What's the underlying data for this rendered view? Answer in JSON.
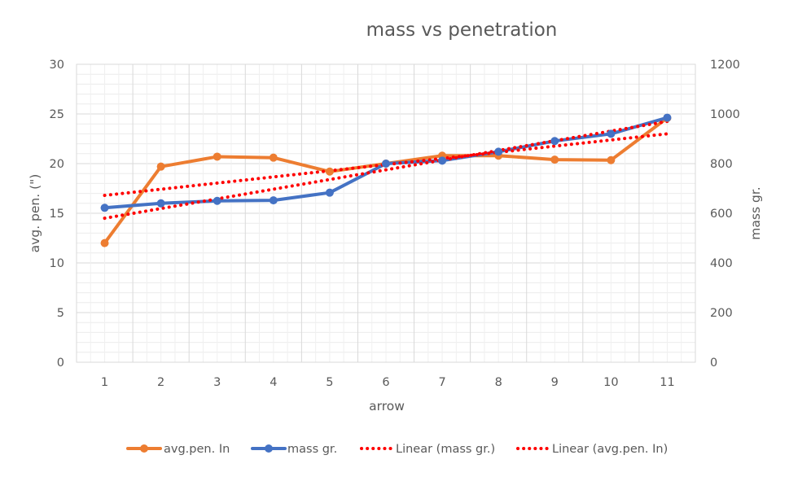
{
  "chart_data": {
    "type": "line",
    "title": "mass vs penetration",
    "xlabel": "arrow",
    "ylabel_left": "avg. pen. (\")",
    "ylabel_right": "mass gr.",
    "categories": [
      "1",
      "2",
      "3",
      "4",
      "5",
      "6",
      "7",
      "8",
      "9",
      "10",
      "11"
    ],
    "ylim_left": [
      0,
      30
    ],
    "yticks_left": [
      0,
      5,
      10,
      15,
      20,
      25,
      30
    ],
    "ylim_right": [
      0,
      1200
    ],
    "yticks_right": [
      0,
      200,
      400,
      600,
      800,
      1000,
      1200
    ],
    "grid": true,
    "legend_position": "bottom",
    "series": [
      {
        "name": "avg.pen. In",
        "axis": "left",
        "color": "#ED7D31",
        "values": [
          12,
          19.7,
          20.7,
          20.6,
          19.2,
          20,
          20.8,
          20.8,
          20.4,
          20.35,
          24.6
        ]
      },
      {
        "name": "mass gr.",
        "axis": "right",
        "color": "#4472C4",
        "values": [
          622,
          640,
          650,
          652,
          683,
          800,
          812,
          848,
          891,
          920,
          985
        ]
      }
    ],
    "trendlines": [
      {
        "name": "Linear (mass gr.)",
        "of": "mass gr.",
        "axis": "right",
        "color": "#FF0000",
        "style": "dotted",
        "values": [
          580,
          970
        ]
      },
      {
        "name": "Linear (avg.pen. In)",
        "of": "avg.pen. In",
        "axis": "left",
        "color": "#FF0000",
        "style": "dotted",
        "values": [
          16.8,
          23
        ]
      }
    ]
  }
}
